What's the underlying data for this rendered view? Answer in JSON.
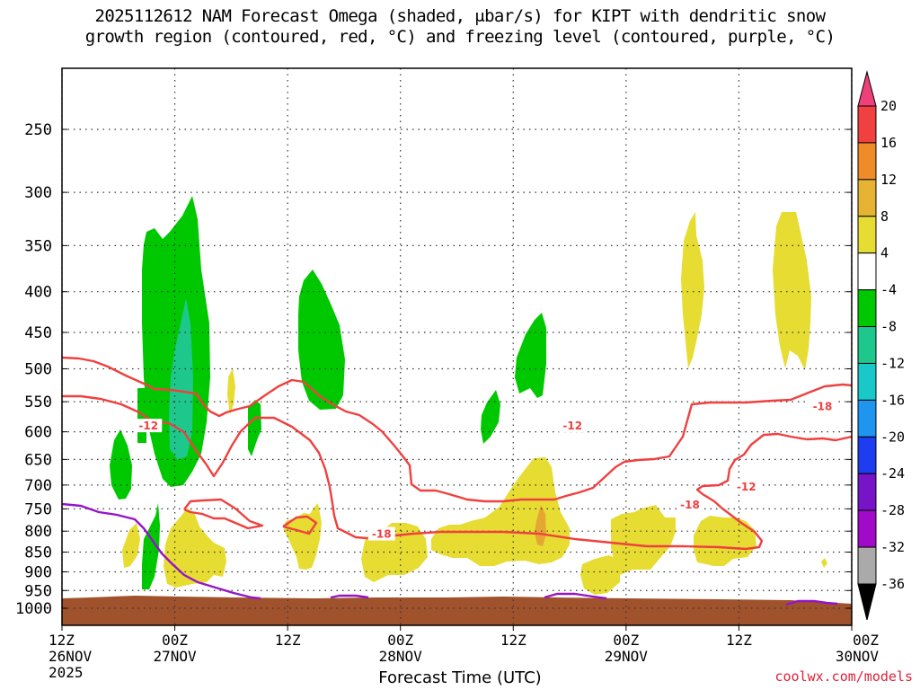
{
  "title": {
    "line1": "2025112612 NAM Forecast Omega (shaded, μbar/s) for KIPT with dendritic snow",
    "line2": "growth region (contoured, red, °C) and freezing level (contoured, purple, °C)"
  },
  "credit": "coolwx.com/models",
  "chart_data": {
    "type": "heatmap",
    "title": "2025112612 NAM Forecast Omega (shaded, μbar/s) for KIPT with dendritic snow growth region (contoured, red, °C) and freezing level (contoured, purple, °C)",
    "xlabel": "Forecast Time (UTC)",
    "ylabel": "",
    "y_ticks": [
      250,
      300,
      350,
      400,
      450,
      500,
      550,
      600,
      650,
      700,
      750,
      800,
      850,
      900,
      950,
      1000
    ],
    "x_ticks": [
      {
        "hour": 12,
        "line1": "12Z",
        "line2": "26NOV",
        "line3": "2025"
      },
      {
        "hour": 24,
        "line1": "00Z",
        "line2": "27NOV",
        "line3": ""
      },
      {
        "hour": 36,
        "line1": "12Z",
        "line2": "",
        "line3": ""
      },
      {
        "hour": 48,
        "line1": "00Z",
        "line2": "28NOV",
        "line3": ""
      },
      {
        "hour": 60,
        "line1": "12Z",
        "line2": "",
        "line3": ""
      },
      {
        "hour": 72,
        "line1": "00Z",
        "line2": "29NOV",
        "line3": ""
      },
      {
        "hour": 84,
        "line1": "12Z",
        "line2": "",
        "line3": ""
      },
      {
        "hour": 96,
        "line1": "00Z",
        "line2": "30NOV",
        "line3": ""
      }
    ],
    "xlim_hours": [
      12,
      96
    ],
    "grid": true,
    "colorbar": {
      "labels": [
        "20",
        "16",
        "12",
        "8",
        "4",
        "-4",
        "-8",
        "-12",
        "-16",
        "-20",
        "-24",
        "-28",
        "-32",
        "-36"
      ],
      "colors": [
        "#f0407a",
        "#f04040",
        "#f08c28",
        "#e6b432",
        "#e6dc32",
        "#ffffff",
        "#00c800",
        "#1ec88c",
        "#19c8c8",
        "#1e96f0",
        "#1e3cf0",
        "#7814c8",
        "#a00ac8",
        "#aaaaaa",
        "#000000"
      ]
    },
    "contour_labels": [
      {
        "text": "-12",
        "hour": 21.2,
        "p": 590
      },
      {
        "text": "-18",
        "hour": 46.0,
        "p": 807
      },
      {
        "text": "-12",
        "hour": 66.3,
        "p": 590
      },
      {
        "text": "-18",
        "hour": 78.8,
        "p": 741
      },
      {
        "text": "-12",
        "hour": 84.8,
        "p": 704
      },
      {
        "text": "-18",
        "hour": 92.9,
        "p": 558
      }
    ],
    "colors": {
      "ground": "#a0522d",
      "dgz_contour": "#f04040",
      "freezing_level": "#9614c8",
      "grid": "#333333"
    }
  }
}
